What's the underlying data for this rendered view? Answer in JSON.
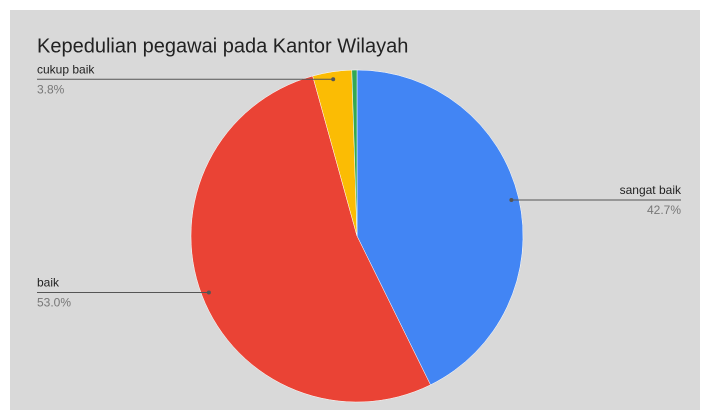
{
  "chart_data": {
    "type": "pie",
    "title": "Kepedulian pegawai pada Kantor Wilayah",
    "categories": [
      "sangat baik",
      "baik",
      "cukup baik",
      null
    ],
    "values": [
      42.7,
      53.0,
      3.8,
      0.5
    ],
    "value_labels": [
      "42.7%",
      "53.0%",
      "3.8%",
      null
    ],
    "colors": [
      "#4285f4",
      "#ea4335",
      "#fbbc04",
      "#34a853"
    ]
  }
}
